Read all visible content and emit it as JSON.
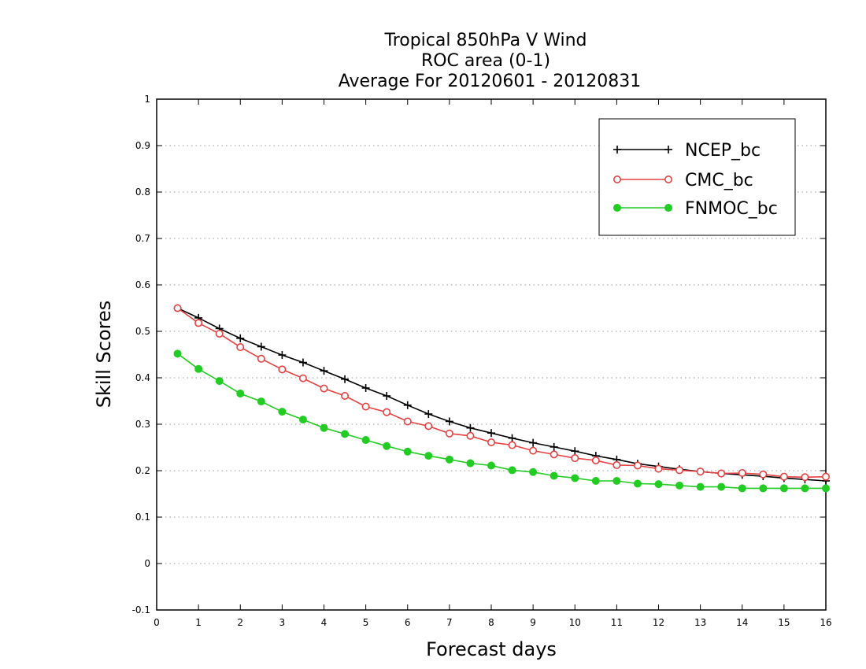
{
  "chart_data": {
    "type": "line",
    "title_lines": [
      "Tropical 850hPa V Wind",
      "ROC area (0-1)",
      "Average For 20120601 - 20120831"
    ],
    "xlabel": "Forecast days",
    "ylabel": "Skill Scores",
    "xlim": [
      0,
      16
    ],
    "ylim": [
      -0.1,
      1
    ],
    "xticks": [
      "0",
      "1",
      "2",
      "3",
      "4",
      "5",
      "6",
      "7",
      "8",
      "9",
      "10",
      "11",
      "12",
      "13",
      "14",
      "15",
      "16"
    ],
    "yticks": [
      "-0.1",
      "0",
      "0.1",
      "0.2",
      "0.3",
      "0.4",
      "0.5",
      "0.6",
      "0.7",
      "0.8",
      "0.9",
      "1"
    ],
    "grid": "dotted-horizontal",
    "legend_position": "top-right",
    "x": [
      0.5,
      1,
      1.5,
      2,
      2.5,
      3,
      3.5,
      4,
      4.5,
      5,
      5.5,
      6,
      6.5,
      7,
      7.5,
      8,
      8.5,
      9,
      9.5,
      10,
      10.5,
      11,
      11.5,
      12,
      12.5,
      13,
      13.5,
      14,
      14.5,
      15,
      15.5,
      16
    ],
    "series": [
      {
        "name": "NCEP_bc",
        "color": "#000000",
        "marker": "plus",
        "values": [
          0.55,
          0.529,
          0.506,
          0.485,
          0.467,
          0.449,
          0.433,
          0.415,
          0.397,
          0.378,
          0.361,
          0.341,
          0.322,
          0.306,
          0.292,
          0.281,
          0.27,
          0.26,
          0.251,
          0.242,
          0.232,
          0.224,
          0.215,
          0.209,
          0.203,
          0.198,
          0.194,
          0.191,
          0.188,
          0.184,
          0.181,
          0.178
        ]
      },
      {
        "name": "CMC_bc",
        "color": "#e64040",
        "marker": "open-circle",
        "values": [
          0.55,
          0.518,
          0.495,
          0.466,
          0.441,
          0.418,
          0.399,
          0.377,
          0.361,
          0.338,
          0.326,
          0.306,
          0.296,
          0.28,
          0.275,
          0.261,
          0.255,
          0.243,
          0.235,
          0.227,
          0.222,
          0.212,
          0.211,
          0.204,
          0.201,
          0.198,
          0.194,
          0.195,
          0.192,
          0.187,
          0.186,
          0.187
        ]
      },
      {
        "name": "FNMOC_bc",
        "color": "#22cc22",
        "marker": "filled-circle",
        "values": [
          0.452,
          0.419,
          0.393,
          0.366,
          0.349,
          0.327,
          0.31,
          0.292,
          0.279,
          0.266,
          0.253,
          0.241,
          0.232,
          0.224,
          0.216,
          0.211,
          0.201,
          0.197,
          0.189,
          0.184,
          0.178,
          0.178,
          0.172,
          0.171,
          0.168,
          0.165,
          0.165,
          0.162,
          0.162,
          0.162,
          0.162,
          0.162
        ]
      }
    ]
  }
}
